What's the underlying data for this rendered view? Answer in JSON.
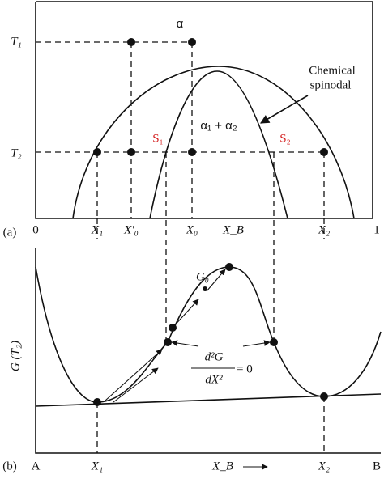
{
  "panel_a": {
    "tag": "(a)",
    "T1": "T₁",
    "T2": "T₂",
    "phase_single": "α",
    "phase_two": "α₁ + α₂",
    "S1": "S₁",
    "S2": "S₂",
    "spinodal_label_line1": "Chemical",
    "spinodal_label_line2": "spinodal",
    "x_labels": [
      "0",
      "X₁",
      "X′₀",
      "X₀",
      "X_B",
      "X₂",
      "1"
    ]
  },
  "panel_b": {
    "tag": "(b)",
    "y_label": "G (T₂)",
    "G0": "G₀",
    "fraction_num": "d²G",
    "fraction_den": "dX²",
    "fraction_eq": "= 0",
    "x_labels": [
      "A",
      "X₁",
      "X_B",
      "X₂",
      "B"
    ]
  }
}
